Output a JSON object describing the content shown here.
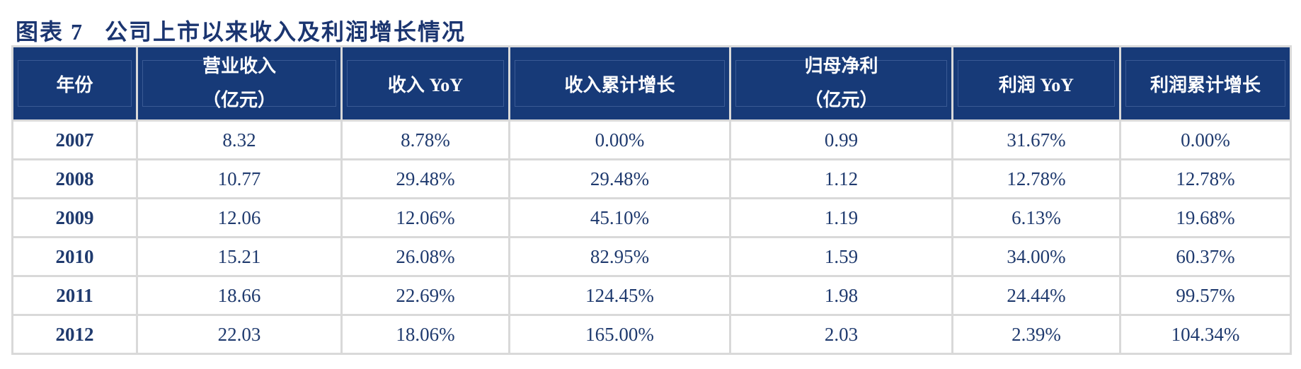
{
  "title": "图表 7   公司上市以来收入及利润增长情况",
  "headers": [
    {
      "line1": "年份",
      "line2": ""
    },
    {
      "line1": "营业收入",
      "line2": "（亿元）"
    },
    {
      "line1": "收入 YoY",
      "line2": ""
    },
    {
      "line1": "收入累计增长",
      "line2": ""
    },
    {
      "line1": "归母净利",
      "line2": "（亿元）"
    },
    {
      "line1": "利润 YoY",
      "line2": ""
    },
    {
      "line1": "利润累计增长",
      "line2": ""
    }
  ],
  "rows": [
    [
      "2007",
      "8.32",
      "8.78%",
      "0.00%",
      "0.99",
      "31.67%",
      "0.00%"
    ],
    [
      "2008",
      "10.77",
      "29.48%",
      "29.48%",
      "1.12",
      "12.78%",
      "12.78%"
    ],
    [
      "2009",
      "12.06",
      "12.06%",
      "45.10%",
      "1.19",
      "6.13%",
      "19.68%"
    ],
    [
      "2010",
      "15.21",
      "26.08%",
      "82.95%",
      "1.59",
      "34.00%",
      "60.37%"
    ],
    [
      "2011",
      "18.66",
      "22.69%",
      "124.45%",
      "1.98",
      "24.44%",
      "99.57%"
    ],
    [
      "2012",
      "22.03",
      "18.06%",
      "165.00%",
      "2.03",
      "2.39%",
      "104.34%"
    ]
  ],
  "colors": {
    "header_bg": "#173a78",
    "text": "#1f3a6e",
    "grid": "#d9d9d9"
  }
}
